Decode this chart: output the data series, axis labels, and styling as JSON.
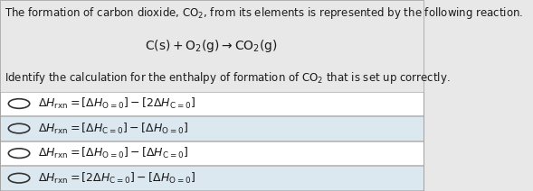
{
  "bg_color": "#e8e8e8",
  "white": "#ffffff",
  "text_color": "#1a1a1a",
  "title_line": "The formation of carbon dioxide, CO₂, from its elements is represented by the following reaction.",
  "reaction": "C(s) + O₂(g) → CO₂(g)",
  "question": "Identify the calculation for the enthalpy of formation of CO₂ that is set up correctly.",
  "options": [
    "ΔHᵣᵏᵐ = [ΔHₒ₌₀] − [2ΔHᶜ₌₀]",
    "ΔHᵣᵏᵐ = [ΔHᶜ₌₀] − [ΔHₒ₌₀]",
    "ΔHᵣᵏᵐ = [ΔHₒ₌₀] − [ΔHᶜ₌₀]",
    "ΔHᵣᵏᵐ = [2ΔHᶜ₌₀] − [ΔHₒ₌₀]"
  ],
  "figsize": [
    5.89,
    2.12
  ],
  "dpi": 100
}
